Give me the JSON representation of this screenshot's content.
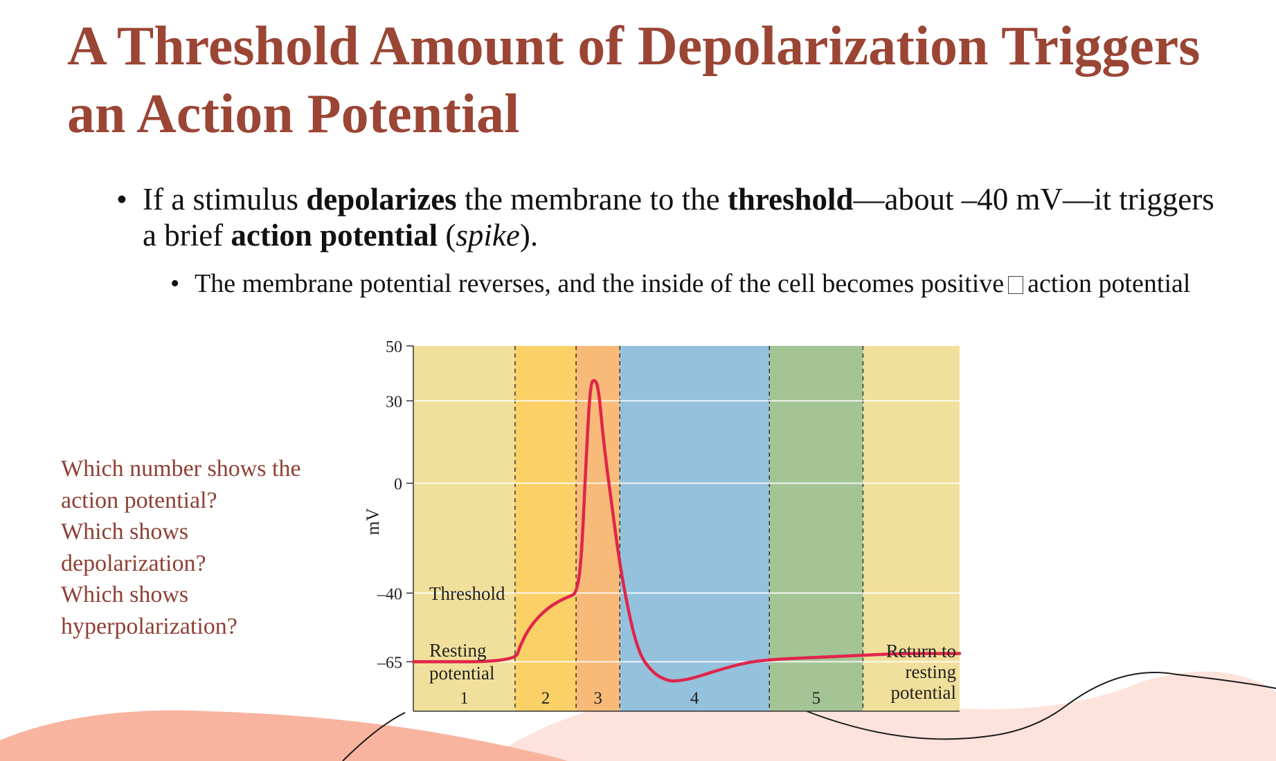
{
  "title": "A Threshold Amount of Depolarization Triggers an Action Potential",
  "bullet1": {
    "t1": "If a stimulus ",
    "b1": "depolarizes",
    "t2": " the membrane to the ",
    "b2": "threshold",
    "t3": "—about –40 mV—it triggers a brief ",
    "b3": "action potential",
    "t4": " (",
    "i1": "spike",
    "t5": ")."
  },
  "bullet2": {
    "t1": "The membrane potential reverses, and the inside of the cell becomes positive",
    "t2": "action potential"
  },
  "questions": [
    "Which number shows the",
    "action potential?",
    "Which shows",
    "depolarization?",
    "Which shows",
    "hyperpolarization?"
  ],
  "chart_data": {
    "type": "line",
    "ylabel": "mV",
    "yticks": [
      50,
      30,
      0,
      -40,
      -65
    ],
    "phases": [
      {
        "label": "1",
        "x_start": 0,
        "x_end": 1.0,
        "color": "#f1e09b"
      },
      {
        "label": "2",
        "x_start": 1.0,
        "x_end": 1.6,
        "color": "#fbd067"
      },
      {
        "label": "3",
        "x_start": 1.6,
        "x_end": 2.03,
        "color": "#f7ba78"
      },
      {
        "label": "4",
        "x_start": 2.03,
        "x_end": 3.5,
        "color": "#94c1dc"
      },
      {
        "label": "5",
        "x_start": 3.5,
        "x_end": 4.42,
        "color": "#a4c495"
      },
      {
        "label": "",
        "x_start": 4.42,
        "x_end": 5.37,
        "color": "#f1e09b"
      }
    ],
    "series": [
      {
        "x": [
          0,
          1.0,
          1.05,
          1.15,
          1.3,
          1.45,
          1.55,
          1.6,
          1.65,
          1.7,
          1.74,
          1.78,
          1.82,
          1.87,
          1.95,
          2.05,
          2.2,
          2.35,
          2.5,
          2.6,
          2.75,
          3.0,
          3.3,
          3.6,
          3.9,
          4.2,
          4.5,
          4.8,
          5.37
        ],
        "y": [
          -65,
          -65,
          -59,
          -52,
          -46,
          -42.5,
          -41,
          -40,
          -30,
          10,
          36,
          38,
          35,
          15,
          -8,
          -35,
          -61,
          -69,
          -72,
          -72,
          -71,
          -68,
          -65,
          -64,
          -63.5,
          -63,
          -62.5,
          -62,
          -62
        ],
        "color": "#e0254a"
      }
    ],
    "annotations": [
      {
        "text": "Threshold",
        "y": -40
      },
      {
        "text": "Resting",
        "y": -65
      },
      {
        "text": "potential",
        "y": -65
      },
      {
        "text": "Return to",
        "y": -65
      },
      {
        "text": "resting",
        "y": -65
      },
      {
        "text": "potential",
        "y": -65
      }
    ],
    "ylim": [
      -83,
      50
    ],
    "xlim": [
      0,
      5.37
    ],
    "grid": true
  }
}
